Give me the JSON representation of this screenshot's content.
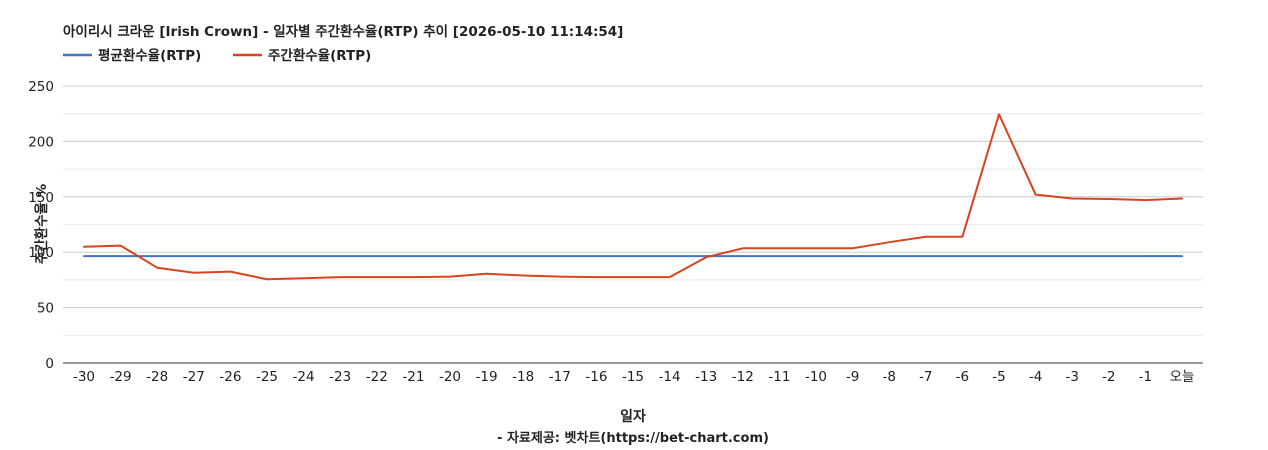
{
  "chart_data": {
    "type": "line",
    "title": "아이리시 크라운 [Irish Crown] - 일자별 주간환수율(RTP) 추이 [2026-05-10 11:14:54]",
    "xlabel": "일자",
    "ylabel": "주간환수율 %",
    "source": "- 자료제공: 벳차트(https://bet-chart.com)",
    "categories": [
      "-30",
      "-29",
      "-28",
      "-27",
      "-26",
      "-25",
      "-24",
      "-23",
      "-22",
      "-21",
      "-20",
      "-19",
      "-18",
      "-17",
      "-16",
      "-15",
      "-14",
      "-13",
      "-12",
      "-11",
      "-10",
      "-9",
      "-8",
      "-7",
      "-6",
      "-5",
      "-4",
      "-3",
      "-2",
      "-1",
      "오늘"
    ],
    "ylim": [
      0,
      250
    ],
    "yticks": [
      0,
      50,
      100,
      150,
      200,
      250
    ],
    "grid": true,
    "legend_position": "top-left",
    "series": [
      {
        "name": "평균환수율(RTP)",
        "color": "#4472c4",
        "values": [
          96.5,
          96.5,
          96.5,
          96.5,
          96.5,
          96.5,
          96.5,
          96.5,
          96.5,
          96.5,
          96.5,
          96.5,
          96.5,
          96.5,
          96.5,
          96.5,
          96.5,
          96.5,
          96.5,
          96.5,
          96.5,
          96.5,
          96.5,
          96.5,
          96.5,
          96.5,
          96.5,
          96.5,
          96.5,
          96.5,
          96.5
        ]
      },
      {
        "name": "주간환수율(RTP)",
        "color": "#d9431e",
        "values": [
          105,
          106,
          86,
          81.5,
          82.5,
          75.5,
          76.5,
          77.5,
          77.5,
          77.5,
          78,
          80.5,
          79,
          78,
          77.5,
          77.5,
          77.5,
          95.5,
          103.5,
          103.5,
          103.5,
          103.5,
          109,
          114,
          114,
          224.5,
          152,
          148.5,
          148,
          147,
          148.5
        ]
      }
    ]
  }
}
